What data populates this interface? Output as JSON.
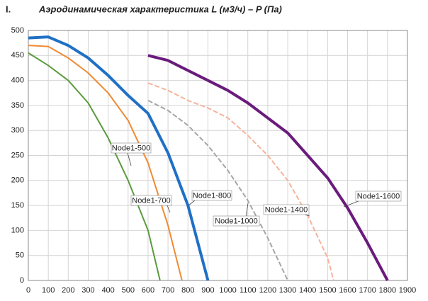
{
  "chart_data": {
    "type": "line",
    "section_number": "I.",
    "title": "Аэродинамическая характеристика L (м3/ч) – P (Па)",
    "xlim": [
      0,
      1900
    ],
    "xticks": [
      0,
      100,
      200,
      300,
      400,
      500,
      600,
      700,
      800,
      900,
      1000,
      1100,
      1200,
      1300,
      1400,
      1500,
      1600,
      1700,
      1800,
      1900
    ],
    "ylim": [
      0,
      500
    ],
    "yticks": [
      0,
      50,
      100,
      150,
      200,
      250,
      300,
      350,
      400,
      450,
      500
    ],
    "grid": true,
    "series": [
      {
        "name": "Node1-500",
        "color": "#5b9b3e",
        "width": 2,
        "dashed": false,
        "x": [
          0,
          100,
          200,
          300,
          400,
          500,
          600,
          660
        ],
        "values": [
          455,
          430,
          400,
          355,
          285,
          200,
          100,
          0
        ]
      },
      {
        "name": "Node1-700",
        "color": "#f08a32",
        "width": 2,
        "dashed": false,
        "x": [
          0,
          100,
          200,
          300,
          400,
          500,
          600,
          700,
          770
        ],
        "values": [
          470,
          468,
          445,
          415,
          375,
          320,
          235,
          110,
          0
        ]
      },
      {
        "name": "Node1-800",
        "color": "#1f70c6",
        "width": 4,
        "dashed": false,
        "x": [
          0,
          100,
          200,
          300,
          400,
          500,
          600,
          700,
          800,
          900
        ],
        "values": [
          485,
          487,
          470,
          445,
          410,
          370,
          334,
          255,
          150,
          0
        ]
      },
      {
        "name": "Node1-1000",
        "color": "#a6a6a6",
        "width": 2,
        "dashed": true,
        "x": [
          600,
          700,
          800,
          900,
          1000,
          1100,
          1200,
          1300
        ],
        "values": [
          360,
          340,
          310,
          270,
          220,
          160,
          85,
          0
        ]
      },
      {
        "name": "Node1-1400",
        "color": "#f6b39b",
        "width": 2,
        "dashed": true,
        "x": [
          600,
          700,
          800,
          900,
          1000,
          1100,
          1200,
          1300,
          1400,
          1500,
          1530
        ],
        "values": [
          395,
          380,
          360,
          345,
          325,
          290,
          250,
          200,
          130,
          45,
          0
        ]
      },
      {
        "name": "Node1-1600",
        "color": "#6a1b7c",
        "width": 4,
        "dashed": false,
        "x": [
          600,
          700,
          800,
          900,
          1000,
          1100,
          1200,
          1300,
          1400,
          1500,
          1600,
          1700,
          1800
        ],
        "values": [
          450,
          440,
          420,
          400,
          380,
          355,
          325,
          295,
          250,
          205,
          145,
          75,
          0
        ]
      }
    ]
  }
}
